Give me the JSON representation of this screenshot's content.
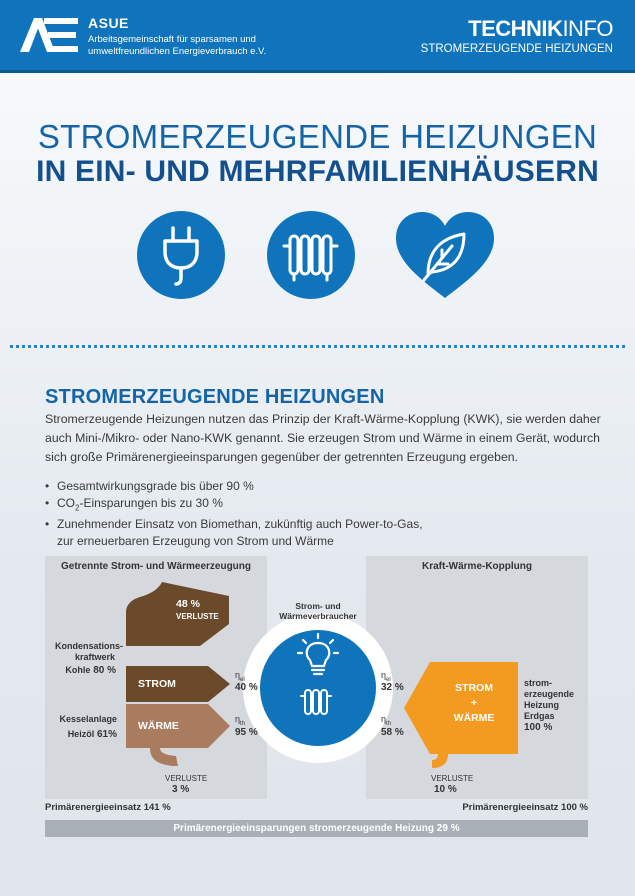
{
  "header": {
    "org_name": "ASUE",
    "org_desc_line1": "Arbeitsgemeinschaft für sparsamen und",
    "org_desc_line2": "umweltfreundlichen Energieverbrauch e.V.",
    "techinfo_bold": "TECHNIK",
    "techinfo_light": "INFO",
    "techinfo_sub": "STROMERZEUGENDE HEIZUNGEN"
  },
  "title": {
    "line1": "STROMERZEUGENDE HEIZUNGEN",
    "line2": "IN EIN- UND MEHRFAMILIENHÄUSERN"
  },
  "icons": [
    "plug-icon",
    "radiator-icon",
    "leaf-heart-icon"
  ],
  "colors": {
    "brand_blue": "#0f74bb",
    "dark_blue": "#15508e",
    "brown_dark": "#6b4a2b",
    "brown_light": "#a97c60",
    "orange": "#f39a21",
    "panel_grey": "#d5d9de"
  },
  "section": {
    "title": "STROMERZEUGENDE HEIZUNGEN",
    "text": "Stromerzeugende Heizungen nutzen das Prinzip der Kraft-Wärme-Kopplung (KWK), sie werden daher auch Mini-/Mikro- oder Nano-KWK genannt. Sie erzeugen Strom und Wärme in einem Gerät, wodurch sich große Primärenergieeinsparungen gegenüber der getrennten Erzeugung ergeben.",
    "bullets": {
      "b1": "Gesamtwirkungsgrade bis über 90 %",
      "b2_pre": "CO",
      "b2_sub": "2",
      "b2_post": "-Einsparungen bis zu 30 %",
      "b3_line1": "Zunehmender Einsatz von Biomethan, zukünftig auch Power-to-Gas,",
      "b3_line2": "zur erneuerbaren Erzeugung von Strom und Wärme"
    }
  },
  "diagram": {
    "left_title": "Getrennte Strom- und Wärmeerzeugung",
    "right_title": "Kraft-Wärme-Kopplung",
    "center_label": "Strom- und Wärmeverbraucher",
    "left": {
      "loss_top_value": "48 %",
      "loss_top_label": "VERLUSTE",
      "plant_label_1": "Kondensations-",
      "plant_label_2": "kraftwerk",
      "coal_label": "Kohle",
      "coal_value": "80 %",
      "strom_label": "STROM",
      "waerme_label": "WÄRME",
      "boiler_label": "Kesselanlage",
      "oil_label": "Heizöl",
      "oil_value": "61%",
      "eta_el": "η",
      "eta_el_sub": "el",
      "eta_el_value": "40 %",
      "eta_th": "η",
      "eta_th_sub": "th",
      "eta_th_value": "95 %",
      "loss_bottom_label": "VERLUSTE",
      "loss_bottom_value": "3 %",
      "primary": "Primärenergieeinsatz 141 %"
    },
    "right": {
      "eta_el": "η",
      "eta_el_sub": "el",
      "eta_el_value": "32 %",
      "eta_th": "η",
      "eta_th_sub": "th",
      "eta_th_value": "58 %",
      "strom_label": "STROM",
      "plus": "+",
      "waerme_label": "WÄRME",
      "source_1": "strom-",
      "source_2": "erzeugende",
      "source_3": "Heizung",
      "source_4": "Erdgas",
      "source_value": "100 %",
      "loss_label": "VERLUSTE",
      "loss_value": "10 %",
      "primary": "Primärenergieeinsatz 100 %"
    },
    "savings": "Primärenergieeinsparungen stromerzeugende Heizung 29 %"
  }
}
